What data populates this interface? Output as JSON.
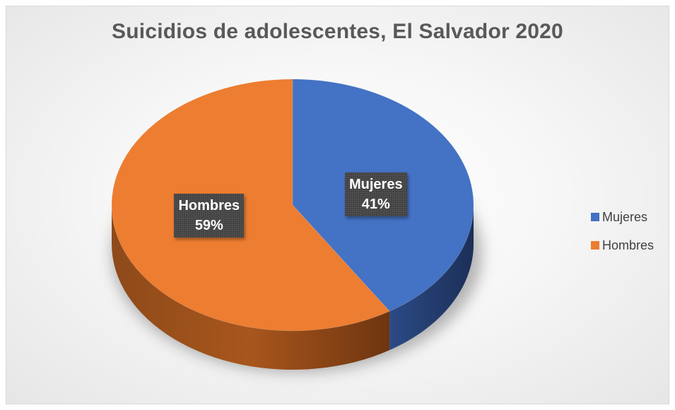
{
  "chart_data": {
    "type": "pie",
    "title": "Suicidios de adolescentes, El Salvador 2020",
    "categories": [
      "Mujeres",
      "Hombres"
    ],
    "values": [
      41,
      59
    ],
    "data_labels": [
      {
        "category": "Mujeres",
        "percent": "41%"
      },
      {
        "category": "Hombres",
        "percent": "59%"
      }
    ],
    "colors": {
      "Mujeres": "#4472c4",
      "Hombres": "#ed7d31"
    },
    "legend": {
      "placement": "right",
      "entries": [
        "Mujeres",
        "Hombres"
      ]
    },
    "style": "3d"
  }
}
